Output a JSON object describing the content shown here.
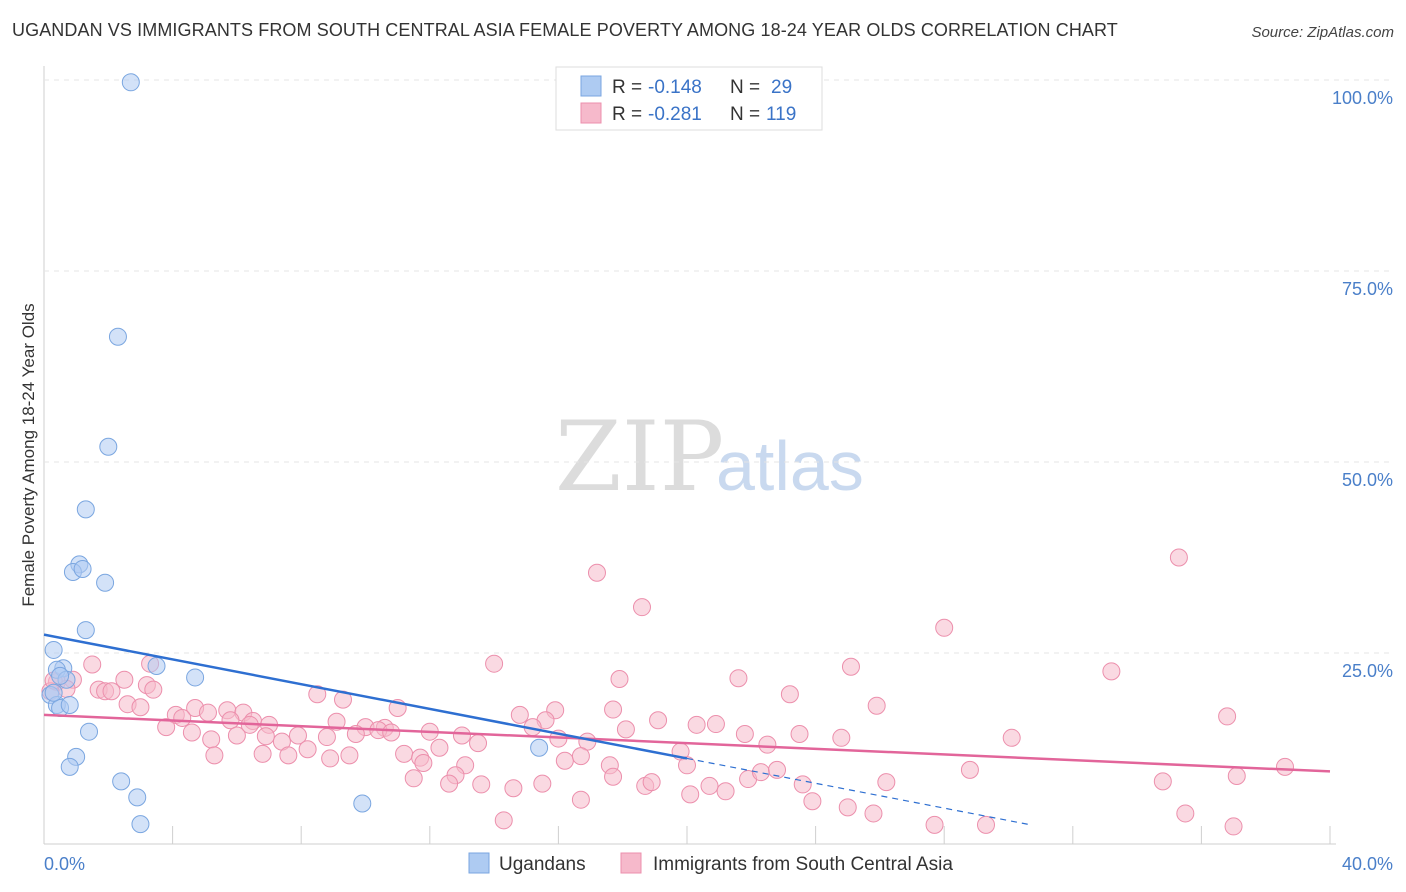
{
  "title": "UGANDAN VS IMMIGRANTS FROM SOUTH CENTRAL ASIA FEMALE POVERTY AMONG 18-24 YEAR OLDS CORRELATION CHART",
  "source": "Source: ZipAtlas.com",
  "watermark": {
    "zip": "ZIP",
    "atlas": "atlas"
  },
  "legend": {
    "r_label": "R =",
    "n_label": "N =",
    "entries": [
      {
        "r": "-0.148",
        "n": "29",
        "color": "#aecbf2"
      },
      {
        "r": "-0.281",
        "n": "119",
        "color": "#f6b9cb"
      }
    ]
  },
  "colors": {
    "blue_fill": "#aecbf2",
    "blue_stroke": "#7aa6e0",
    "blue_line": "#2e6fd1",
    "pink_fill": "#f6b9cb",
    "pink_stroke": "#ec8fac",
    "pink_line": "#e2659a"
  },
  "chart_data": {
    "type": "scatter",
    "title": "UGANDAN VS IMMIGRANTS FROM SOUTH CENTRAL ASIA FEMALE POVERTY AMONG 18-24 YEAR OLDS CORRELATION CHART",
    "xlabel": "",
    "ylabel": "Female Poverty Among 18-24 Year Olds",
    "xlim": [
      0,
      40
    ],
    "ylim": [
      0,
      100
    ],
    "x_ticks": [
      "0.0%",
      "40.0%"
    ],
    "y_ticks": [
      {
        "value": 25,
        "label": "25.0%"
      },
      {
        "value": 50,
        "label": "50.0%"
      },
      {
        "value": 75,
        "label": "75.0%"
      },
      {
        "value": 100,
        "label": "100.0%"
      }
    ],
    "grid": true,
    "legend_position": "top-center",
    "series": [
      {
        "name": "Ugandans",
        "color": "#aecbf2",
        "trend": {
          "x": [
            0,
            20
          ],
          "y": [
            27.4,
            11.2
          ],
          "dashed_to": [
            30.7,
            2.5
          ]
        },
        "points": [
          [
            2.7,
            99.7
          ],
          [
            2.3,
            66.4
          ],
          [
            2.0,
            52.0
          ],
          [
            1.3,
            43.8
          ],
          [
            1.1,
            36.6
          ],
          [
            1.9,
            34.2
          ],
          [
            0.9,
            35.6
          ],
          [
            1.2,
            36.0
          ],
          [
            1.3,
            28.0
          ],
          [
            0.3,
            25.4
          ],
          [
            0.6,
            23.0
          ],
          [
            0.4,
            22.8
          ],
          [
            0.7,
            21.5
          ],
          [
            0.2,
            19.5
          ],
          [
            0.4,
            18.2
          ],
          [
            0.5,
            17.8
          ],
          [
            0.8,
            18.2
          ],
          [
            0.3,
            19.8
          ],
          [
            3.5,
            23.3
          ],
          [
            4.7,
            21.8
          ],
          [
            1.4,
            14.7
          ],
          [
            1.0,
            11.4
          ],
          [
            0.8,
            10.1
          ],
          [
            2.4,
            8.2
          ],
          [
            2.9,
            6.1
          ],
          [
            3.0,
            2.6
          ],
          [
            9.9,
            5.3
          ],
          [
            15.4,
            12.6
          ],
          [
            0.5,
            22.0
          ]
        ]
      },
      {
        "name": "Immigrants from South Central Asia",
        "color": "#f6b9cb",
        "trend": {
          "x": [
            0,
            40
          ],
          "y": [
            16.9,
            9.5
          ]
        },
        "points": [
          [
            35.3,
            37.5
          ],
          [
            17.2,
            35.5
          ],
          [
            18.6,
            31.0
          ],
          [
            28.0,
            28.3
          ],
          [
            14.0,
            23.6
          ],
          [
            25.1,
            23.2
          ],
          [
            33.2,
            22.6
          ],
          [
            17.9,
            21.6
          ],
          [
            21.6,
            21.7
          ],
          [
            3.3,
            23.6
          ],
          [
            1.5,
            23.5
          ],
          [
            0.4,
            21.2
          ],
          [
            0.9,
            21.5
          ],
          [
            1.7,
            20.2
          ],
          [
            0.7,
            20.3
          ],
          [
            1.9,
            20.0
          ],
          [
            2.1,
            20.0
          ],
          [
            2.5,
            21.5
          ],
          [
            3.2,
            20.8
          ],
          [
            3.4,
            20.2
          ],
          [
            0.2,
            20.0
          ],
          [
            0.3,
            21.4
          ],
          [
            8.5,
            19.6
          ],
          [
            23.2,
            19.6
          ],
          [
            2.6,
            18.3
          ],
          [
            3.0,
            17.9
          ],
          [
            4.7,
            17.8
          ],
          [
            5.1,
            17.2
          ],
          [
            5.7,
            17.5
          ],
          [
            6.2,
            17.2
          ],
          [
            11.0,
            17.8
          ],
          [
            15.9,
            17.5
          ],
          [
            17.7,
            17.6
          ],
          [
            25.9,
            18.1
          ],
          [
            4.1,
            16.9
          ],
          [
            4.3,
            16.5
          ],
          [
            5.8,
            16.2
          ],
          [
            6.5,
            16.1
          ],
          [
            7.0,
            15.6
          ],
          [
            9.1,
            16.0
          ],
          [
            10.0,
            15.3
          ],
          [
            10.6,
            15.2
          ],
          [
            14.8,
            16.9
          ],
          [
            15.6,
            16.2
          ],
          [
            18.1,
            15.0
          ],
          [
            19.1,
            16.2
          ],
          [
            20.3,
            15.6
          ],
          [
            20.9,
            15.7
          ],
          [
            3.8,
            15.3
          ],
          [
            4.6,
            14.6
          ],
          [
            5.2,
            13.7
          ],
          [
            6.0,
            14.2
          ],
          [
            6.9,
            14.1
          ],
          [
            7.4,
            13.4
          ],
          [
            7.9,
            14.2
          ],
          [
            8.8,
            14.0
          ],
          [
            9.7,
            14.4
          ],
          [
            10.4,
            14.9
          ],
          [
            12.0,
            14.7
          ],
          [
            13.5,
            13.2
          ],
          [
            15.2,
            15.3
          ],
          [
            16.0,
            13.8
          ],
          [
            16.9,
            13.4
          ],
          [
            19.8,
            12.1
          ],
          [
            21.8,
            14.4
          ],
          [
            23.5,
            14.4
          ],
          [
            24.8,
            13.9
          ],
          [
            30.1,
            13.9
          ],
          [
            5.3,
            11.6
          ],
          [
            6.8,
            11.8
          ],
          [
            7.6,
            11.6
          ],
          [
            8.9,
            11.2
          ],
          [
            9.5,
            11.6
          ],
          [
            11.2,
            11.8
          ],
          [
            11.7,
            11.3
          ],
          [
            12.3,
            12.6
          ],
          [
            13.1,
            10.3
          ],
          [
            16.2,
            10.9
          ],
          [
            16.7,
            11.5
          ],
          [
            17.6,
            10.3
          ],
          [
            20.0,
            10.3
          ],
          [
            12.8,
            9.0
          ],
          [
            11.5,
            8.6
          ],
          [
            12.6,
            7.9
          ],
          [
            13.6,
            7.8
          ],
          [
            14.3,
            3.1
          ],
          [
            14.6,
            7.3
          ],
          [
            15.5,
            7.9
          ],
          [
            16.7,
            5.8
          ],
          [
            17.7,
            8.8
          ],
          [
            18.7,
            7.6
          ],
          [
            18.9,
            8.1
          ],
          [
            20.1,
            6.5
          ],
          [
            20.7,
            7.6
          ],
          [
            21.2,
            6.9
          ],
          [
            21.9,
            8.5
          ],
          [
            22.3,
            9.4
          ],
          [
            22.8,
            9.7
          ],
          [
            23.6,
            7.8
          ],
          [
            23.9,
            5.6
          ],
          [
            25.0,
            4.8
          ],
          [
            25.8,
            4.0
          ],
          [
            26.2,
            8.1
          ],
          [
            27.7,
            2.5
          ],
          [
            29.3,
            2.5
          ],
          [
            34.8,
            8.2
          ],
          [
            37.1,
            8.9
          ],
          [
            37.0,
            2.3
          ],
          [
            38.6,
            10.1
          ],
          [
            35.5,
            4.0
          ],
          [
            36.8,
            16.7
          ],
          [
            9.3,
            18.9
          ],
          [
            10.8,
            14.6
          ],
          [
            11.8,
            10.6
          ],
          [
            22.5,
            13.0
          ],
          [
            28.8,
            9.7
          ],
          [
            13.0,
            14.2
          ],
          [
            6.4,
            15.6
          ],
          [
            8.2,
            12.4
          ]
        ]
      }
    ]
  },
  "bottom_legend": [
    {
      "label": "Ugandans",
      "color": "#aecbf2"
    },
    {
      "label": "Immigrants from South Central Asia",
      "color": "#f6b9cb"
    }
  ]
}
